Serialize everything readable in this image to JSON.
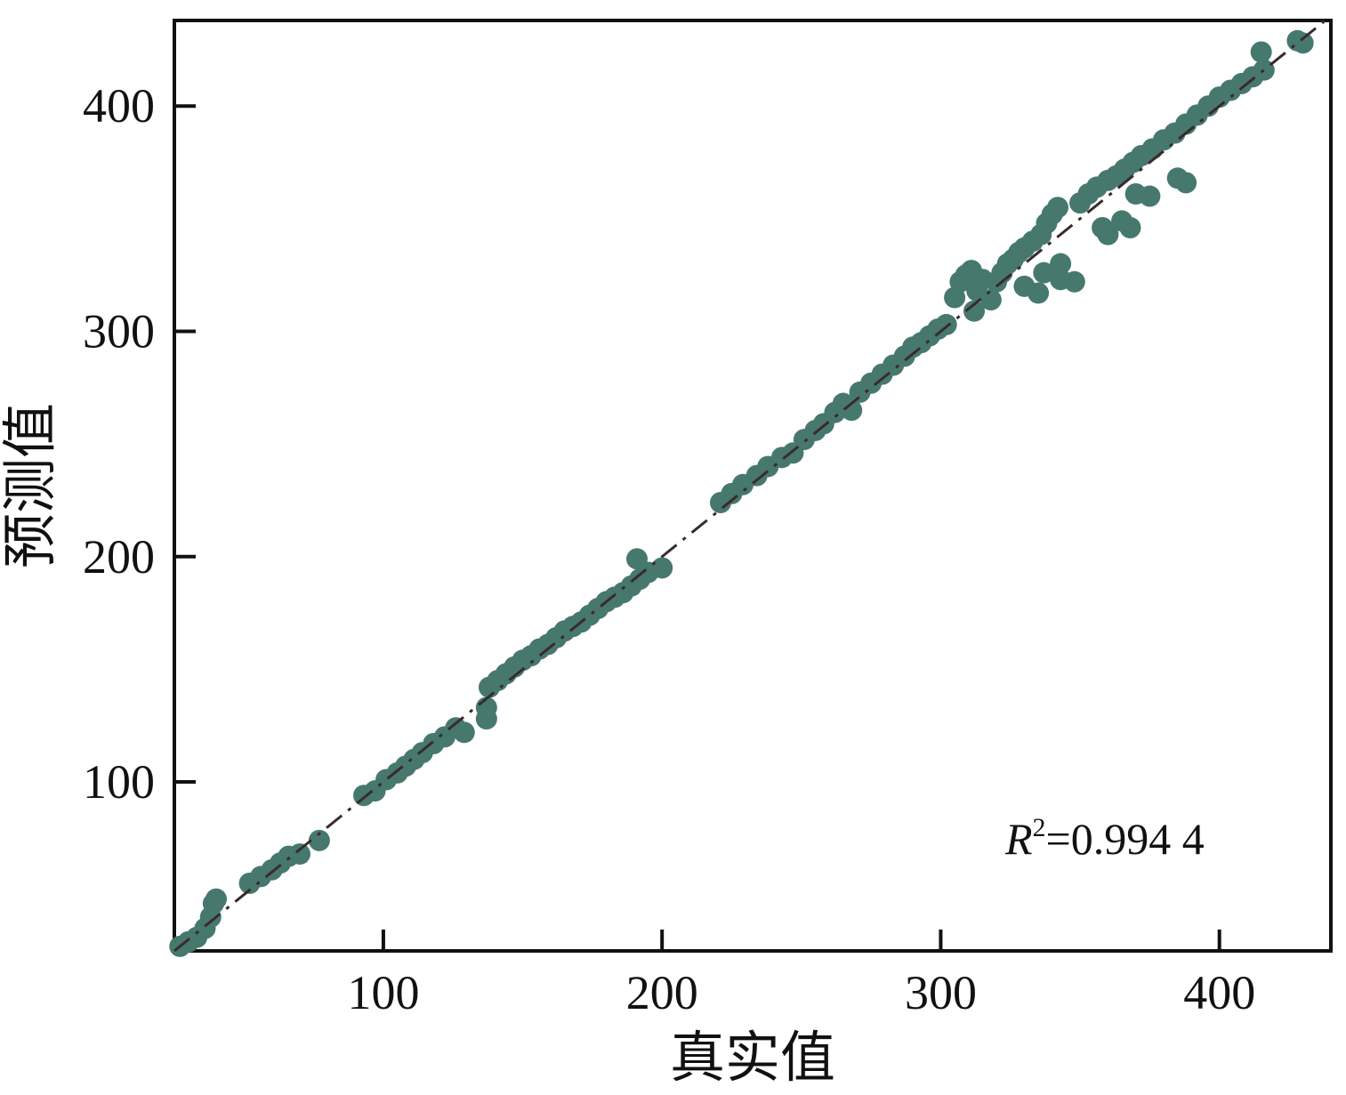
{
  "chart_data": {
    "type": "scatter",
    "title": "",
    "xlabel": "真实值",
    "ylabel": "预测值",
    "xlim": [
      25,
      440
    ],
    "ylim": [
      25,
      438
    ],
    "xticks": [
      100,
      200,
      300,
      400
    ],
    "yticks": [
      100,
      200,
      300,
      400
    ],
    "x_tick_labels": [
      "100",
      "200",
      "300",
      "400"
    ],
    "y_tick_labels": [
      "100",
      "200",
      "300",
      "400"
    ],
    "grid": false,
    "annotation": {
      "symbol": "R",
      "superscript": "2",
      "text": "=0.994 4",
      "value": 0.9944
    },
    "reference_line": {
      "style": "dash-dot",
      "from": [
        25,
        25
      ],
      "to": [
        440,
        440
      ]
    },
    "marker_color": "#46786e",
    "line_color": "#3a2a2a",
    "points": [
      [
        27,
        27
      ],
      [
        30,
        29
      ],
      [
        33,
        31
      ],
      [
        36,
        35
      ],
      [
        38,
        40
      ],
      [
        39,
        46
      ],
      [
        40,
        48
      ],
      [
        52,
        55
      ],
      [
        56,
        58
      ],
      [
        60,
        61
      ],
      [
        63,
        64
      ],
      [
        66,
        67
      ],
      [
        70,
        68
      ],
      [
        77,
        74
      ],
      [
        93,
        94
      ],
      [
        97,
        96
      ],
      [
        101,
        101
      ],
      [
        105,
        104
      ],
      [
        108,
        107
      ],
      [
        111,
        110
      ],
      [
        114,
        113
      ],
      [
        118,
        117
      ],
      [
        122,
        120
      ],
      [
        126,
        124
      ],
      [
        129,
        122
      ],
      [
        137,
        133
      ],
      [
        137,
        128
      ],
      [
        138,
        142
      ],
      [
        141,
        145
      ],
      [
        144,
        148
      ],
      [
        147,
        151
      ],
      [
        150,
        154
      ],
      [
        153,
        156
      ],
      [
        156,
        159
      ],
      [
        159,
        161
      ],
      [
        162,
        164
      ],
      [
        165,
        167
      ],
      [
        168,
        169
      ],
      [
        171,
        171
      ],
      [
        174,
        174
      ],
      [
        177,
        177
      ],
      [
        180,
        180
      ],
      [
        183,
        182
      ],
      [
        186,
        184
      ],
      [
        189,
        187
      ],
      [
        192,
        190
      ],
      [
        191,
        199
      ],
      [
        195,
        193
      ],
      [
        200,
        195
      ],
      [
        221,
        224
      ],
      [
        225,
        228
      ],
      [
        229,
        232
      ],
      [
        234,
        236
      ],
      [
        238,
        240
      ],
      [
        243,
        244
      ],
      [
        247,
        246
      ],
      [
        251,
        252
      ],
      [
        255,
        256
      ],
      [
        258,
        259
      ],
      [
        262,
        264
      ],
      [
        265,
        268
      ],
      [
        268,
        265
      ],
      [
        271,
        273
      ],
      [
        275,
        277
      ],
      [
        279,
        281
      ],
      [
        283,
        285
      ],
      [
        287,
        289
      ],
      [
        290,
        293
      ],
      [
        293,
        295
      ],
      [
        296,
        298
      ],
      [
        299,
        301
      ],
      [
        302,
        303
      ],
      [
        305,
        315
      ],
      [
        307,
        322
      ],
      [
        309,
        325
      ],
      [
        311,
        327
      ],
      [
        313,
        318
      ],
      [
        315,
        323
      ],
      [
        312,
        309
      ],
      [
        318,
        314
      ],
      [
        320,
        322
      ],
      [
        322,
        326
      ],
      [
        324,
        330
      ],
      [
        326,
        332
      ],
      [
        328,
        335
      ],
      [
        330,
        337
      ],
      [
        333,
        340
      ],
      [
        336,
        343
      ],
      [
        338,
        348
      ],
      [
        340,
        352
      ],
      [
        342,
        355
      ],
      [
        330,
        320
      ],
      [
        335,
        317
      ],
      [
        343,
        323
      ],
      [
        348,
        322
      ],
      [
        343,
        330
      ],
      [
        337,
        326
      ],
      [
        350,
        357
      ],
      [
        353,
        361
      ],
      [
        356,
        364
      ],
      [
        360,
        367
      ],
      [
        358,
        346
      ],
      [
        360,
        343
      ],
      [
        365,
        349
      ],
      [
        368,
        346
      ],
      [
        370,
        361
      ],
      [
        375,
        360
      ],
      [
        385,
        368
      ],
      [
        388,
        366
      ],
      [
        363,
        369
      ],
      [
        366,
        372
      ],
      [
        369,
        375
      ],
      [
        372,
        378
      ],
      [
        376,
        381
      ],
      [
        380,
        385
      ],
      [
        384,
        388
      ],
      [
        388,
        392
      ],
      [
        392,
        396
      ],
      [
        396,
        400
      ],
      [
        400,
        404
      ],
      [
        404,
        407
      ],
      [
        408,
        410
      ],
      [
        412,
        413
      ],
      [
        416,
        416
      ],
      [
        415,
        424
      ],
      [
        428,
        429
      ],
      [
        430,
        428
      ]
    ]
  }
}
